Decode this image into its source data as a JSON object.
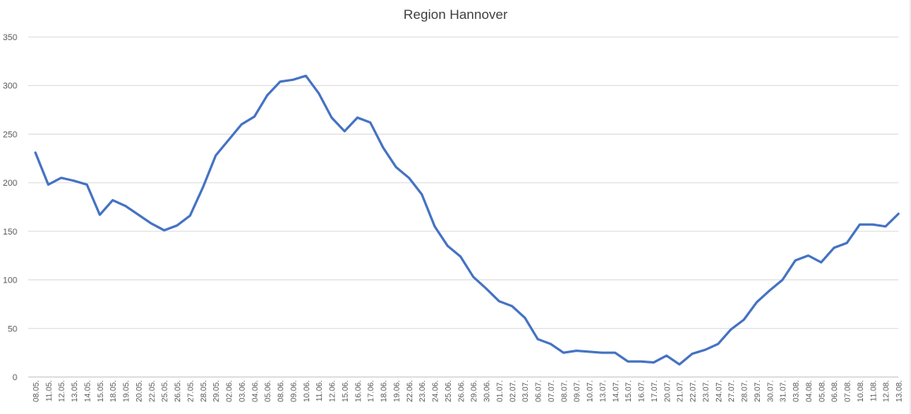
{
  "chart_data": {
    "type": "line",
    "title": "Region Hannover",
    "xlabel": "",
    "ylabel": "",
    "ylim": [
      0,
      350
    ],
    "yticks": [
      0,
      50,
      100,
      150,
      200,
      250,
      300,
      350
    ],
    "grid": "horizontal",
    "legend": "none",
    "line_color": "#4472C4",
    "categories": [
      "08.05.",
      "11.05.",
      "12.05.",
      "13.05.",
      "14.05.",
      "15.05.",
      "18.05.",
      "19.05.",
      "20.05.",
      "22.05.",
      "25.05.",
      "26.05.",
      "27.05.",
      "28.05.",
      "29.05.",
      "02.06.",
      "03.06.",
      "04.06.",
      "05.06.",
      "08.06.",
      "09.06.",
      "10.06.",
      "11.06.",
      "12.06.",
      "15.06.",
      "16.06.",
      "17.06.",
      "18.06.",
      "19.06.",
      "22.06.",
      "23.06.",
      "24.06.",
      "25.06.",
      "26.06.",
      "29.06.",
      "30.06.",
      "01.07.",
      "02.07.",
      "03.07.",
      "06.07.",
      "07.07.",
      "08.07.",
      "09.07.",
      "10.07.",
      "13.07.",
      "14.07.",
      "15.07.",
      "16.07.",
      "17.07.",
      "20.07.",
      "21.07.",
      "22.07.",
      "23.07.",
      "24.07.",
      "27.07.",
      "28.07.",
      "29.07.",
      "30.07.",
      "31.07.",
      "03.08.",
      "04.08.",
      "05.08.",
      "06.08.",
      "07.08.",
      "10.08.",
      "11.08.",
      "12.08.",
      "13.08."
    ],
    "series": [
      {
        "values": [
          231,
          198,
          205,
          202,
          198,
          167,
          182,
          176,
          167,
          158,
          151,
          156,
          166,
          195,
          228,
          244,
          260,
          268,
          290,
          304,
          306,
          310,
          292,
          267,
          253,
          267,
          262,
          236,
          216,
          205,
          188,
          155,
          135,
          124,
          103,
          91,
          78,
          73,
          61,
          39,
          34,
          25,
          27,
          26,
          25,
          25,
          16,
          16,
          15,
          22,
          13,
          24,
          28,
          34,
          49,
          59,
          77,
          89,
          100,
          120,
          125,
          118,
          133,
          138,
          157,
          157,
          155,
          168
        ]
      }
    ]
  }
}
